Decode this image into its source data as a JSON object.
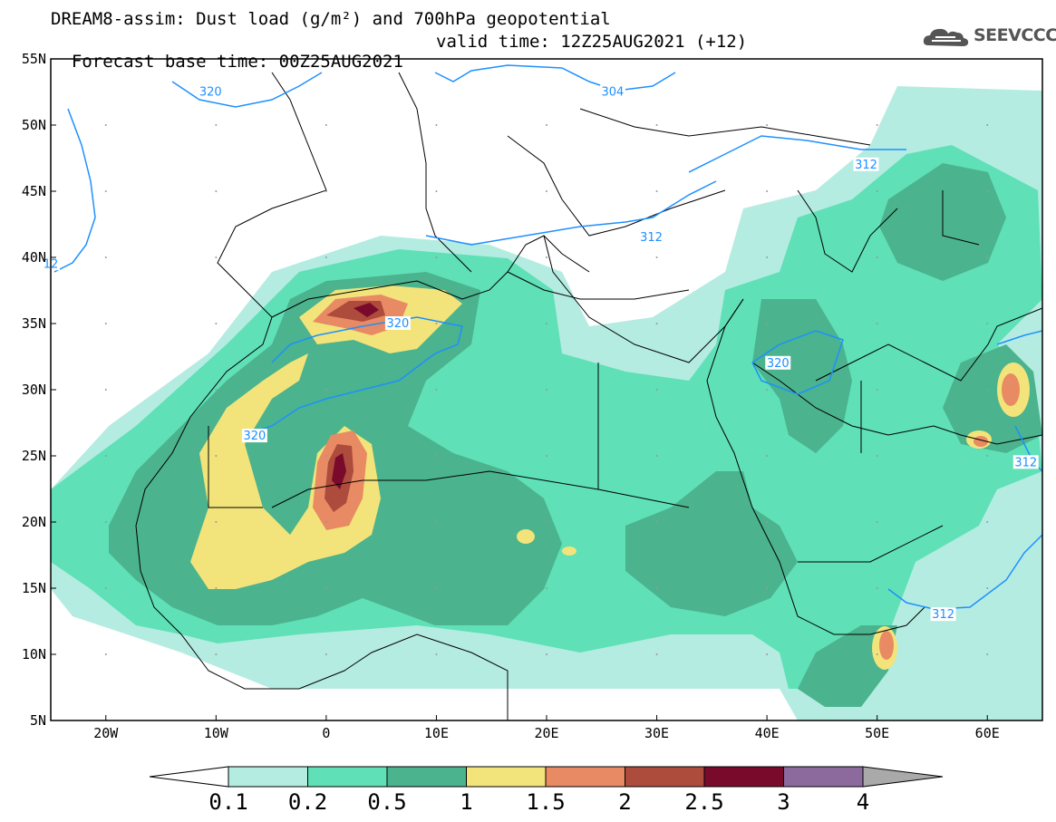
{
  "title_line1": "DREAM8-assim: Dust load (g/m²) and 700hPa geopotential",
  "title_line2": "Forecast base time: 00Z25AUG2021",
  "valid_time": "valid time: 12Z25AUG2021 (+12)",
  "logo_text": "SEEVCCC",
  "latitude_labels": [
    "55N",
    "50N",
    "45N",
    "40N",
    "35N",
    "30N",
    "25N",
    "20N",
    "15N",
    "10N",
    "5N"
  ],
  "longitude_labels": [
    "20W",
    "10W",
    "0",
    "10E",
    "20E",
    "30E",
    "40E",
    "50E",
    "60E"
  ],
  "colorbar": {
    "ticks": [
      "0.1",
      "0.2",
      "0.5",
      "1",
      "1.5",
      "2",
      "2.5",
      "3",
      "4"
    ],
    "colors": [
      "#b4ece2",
      "#5fe0b6",
      "#4bb38d",
      "#f2e47a",
      "#e88a63",
      "#ad4b3c",
      "#7a0a2c",
      "#8c6a9e",
      "#a9a9a9"
    ]
  },
  "contour_labels": [
    {
      "text": "320",
      "lon": -10.5,
      "lat": 52.5
    },
    {
      "text": "304",
      "lon": 26.0,
      "lat": 52.5
    },
    {
      "text": "312",
      "lon": 49.0,
      "lat": 47.0
    },
    {
      "text": "312",
      "lon": 29.5,
      "lat": 41.5
    },
    {
      "text": "12",
      "lon": -25.0,
      "lat": 39.5
    },
    {
      "text": "320",
      "lon": 6.5,
      "lat": 35.0
    },
    {
      "text": "320",
      "lon": 41.0,
      "lat": 32.0
    },
    {
      "text": "320",
      "lon": -6.5,
      "lat": 26.5
    },
    {
      "text": "312",
      "lon": 63.5,
      "lat": 24.5
    },
    {
      "text": "312",
      "lon": 56.0,
      "lat": 13.0
    }
  ],
  "map_extent": {
    "lon_min": -25,
    "lon_max": 65,
    "lat_min": 5,
    "lat_max": 55
  }
}
